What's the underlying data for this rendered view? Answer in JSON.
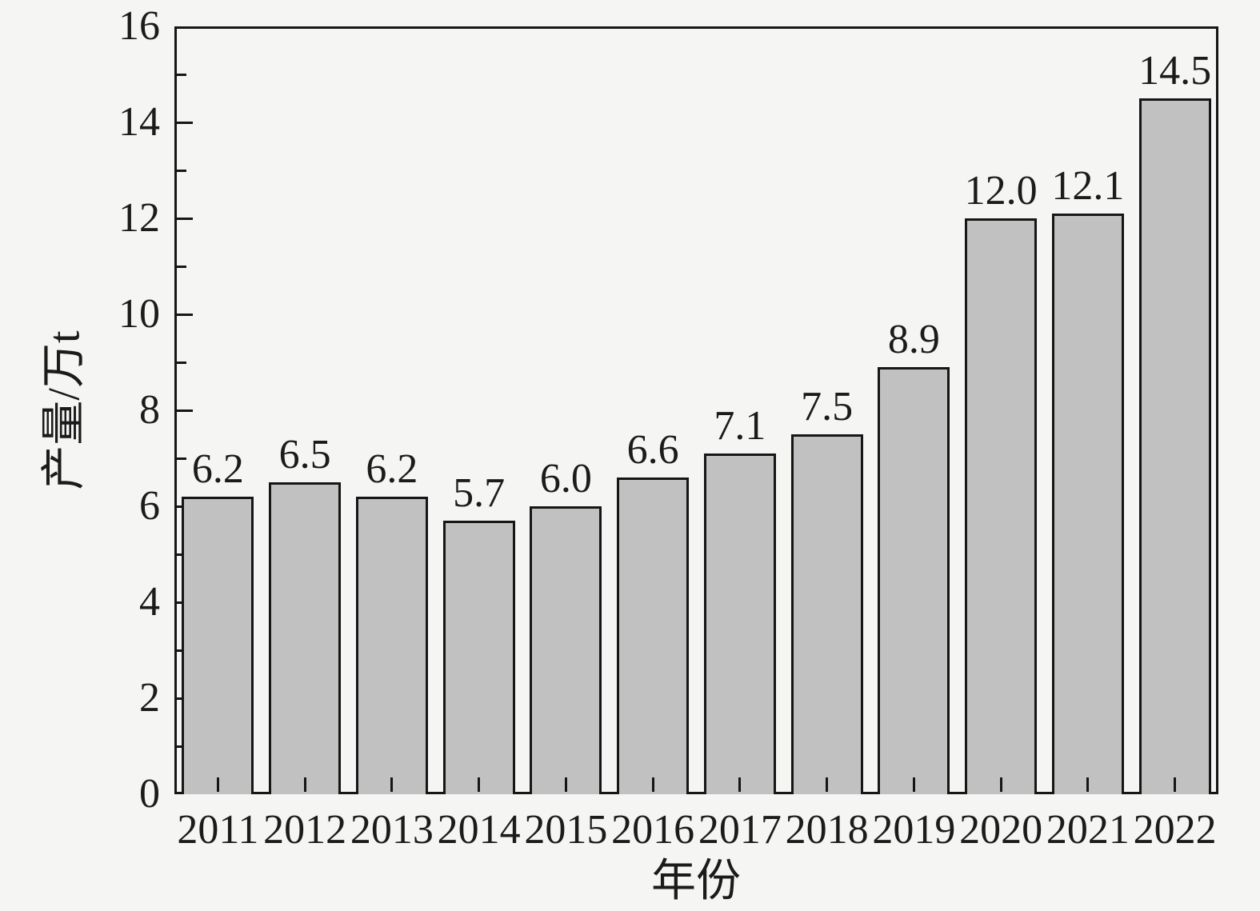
{
  "chart_data": {
    "type": "bar",
    "title": "",
    "categories": [
      "2011",
      "2012",
      "2013",
      "2014",
      "2015",
      "2016",
      "2017",
      "2018",
      "2019",
      "2020",
      "2021",
      "2022"
    ],
    "values": [
      6.2,
      6.5,
      6.2,
      5.7,
      6.0,
      6.6,
      7.1,
      7.5,
      8.9,
      12.0,
      12.1,
      14.5
    ],
    "value_labels": [
      "6.2",
      "6.5",
      "6.2",
      "5.7",
      "6.0",
      "6.6",
      "7.1",
      "7.5",
      "8.9",
      "12.0",
      "12.1",
      "14.5"
    ],
    "xlabel": "年份",
    "ylabel": "产量/万t",
    "ylim": [
      0,
      16
    ],
    "ytick_step": 2,
    "ytick_minor_step": 1,
    "ytick_labels": [
      "0",
      "2",
      "4",
      "6",
      "8",
      "10",
      "12",
      "14",
      "16"
    ],
    "grid": false,
    "legend": "none",
    "bar_label_position": "above-bar"
  },
  "colors": {
    "background": "#f5f5f4",
    "bar_fill": "#c1c1c1",
    "bar_border": "#161616",
    "axis": "#161616",
    "text": "#1b1b1b"
  }
}
